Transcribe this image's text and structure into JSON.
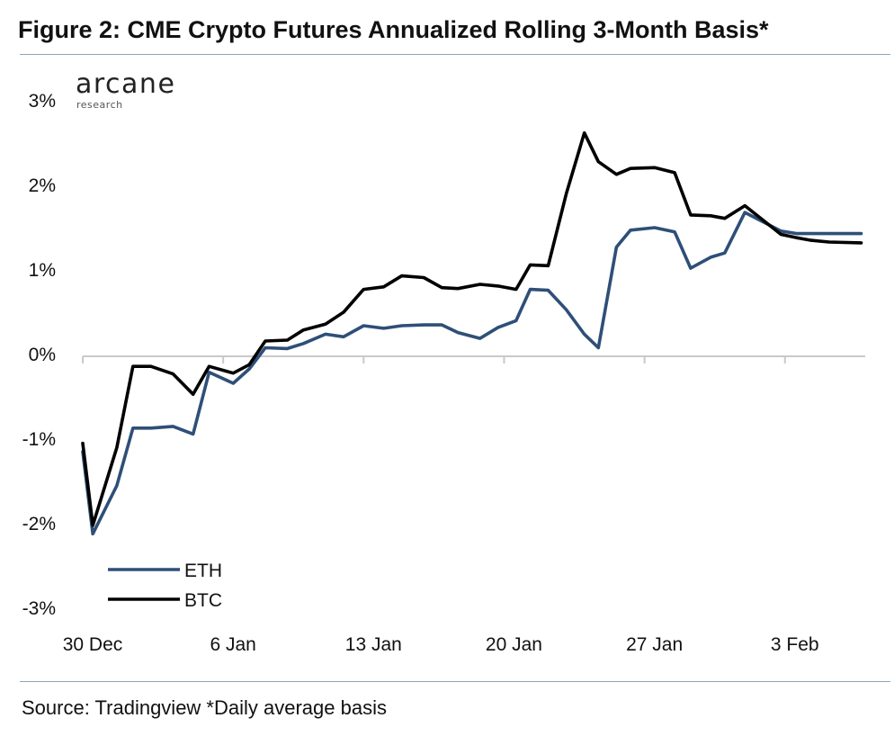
{
  "title": "Figure 2: CME Crypto Futures Annualized Rolling 3-Month Basis*",
  "source": "Source: Tradingview *Daily average basis",
  "logo": {
    "main": "arcane",
    "sub": "research"
  },
  "colors": {
    "ETH": "#2e4f78",
    "BTC": "#000000",
    "rule": "#8fa3b8",
    "axis": "#c9c9c9"
  },
  "chart_data": {
    "type": "line",
    "title": "Figure 2: CME Crypto Futures Annualized Rolling 3-Month Basis*",
    "xlabel": "",
    "ylabel": "",
    "ylim": [
      -3,
      3
    ],
    "y_ticks": [
      "3%",
      "2%",
      "1%",
      "0%",
      "-1%",
      "-2%",
      "-3%"
    ],
    "y_tick_values": [
      3,
      2,
      1,
      0,
      -1,
      -2,
      -3
    ],
    "x_ticks": [
      "30 Dec",
      "6 Jan",
      "13 Jan",
      "20 Jan",
      "27 Jan",
      "3 Feb"
    ],
    "x_tick_days": [
      0,
      7,
      14,
      21,
      28,
      35
    ],
    "x_range_days": [
      0,
      39
    ],
    "legend": "bottom-left",
    "grid": false,
    "series": [
      {
        "name": "ETH",
        "x": [
          0,
          0.5,
          1.7,
          2.5,
          3.4,
          4.5,
          5.5,
          6.3,
          7.5,
          8.3,
          9.1,
          10.2,
          11,
          12.1,
          13,
          14,
          15,
          15.9,
          17,
          17.9,
          18.7,
          19.8,
          20.7,
          21.6,
          22.3,
          23.2,
          24.1,
          25,
          25.7,
          26.6,
          27.3,
          28.5,
          29.5,
          30.3,
          31.3,
          32,
          33,
          34.8,
          35.6,
          36.3,
          37.2,
          38.8
        ],
        "y": [
          -1.15,
          -2.12,
          -1.55,
          -0.87,
          -0.87,
          -0.85,
          -0.94,
          -0.21,
          -0.34,
          -0.17,
          0.08,
          0.07,
          0.13,
          0.24,
          0.21,
          0.34,
          0.31,
          0.34,
          0.35,
          0.35,
          0.26,
          0.19,
          0.32,
          0.4,
          0.77,
          0.76,
          0.53,
          0.24,
          0.08,
          1.27,
          1.47,
          1.5,
          1.45,
          1.02,
          1.15,
          1.2,
          1.68,
          1.46,
          1.43,
          1.43,
          1.43,
          1.43
        ]
      },
      {
        "name": "BTC",
        "x": [
          0,
          0.5,
          1.7,
          2.5,
          3.4,
          4.5,
          5.5,
          6.3,
          7.5,
          8.3,
          9.1,
          10.2,
          11,
          12.1,
          13,
          14,
          15,
          15.9,
          17,
          17.9,
          18.7,
          19.8,
          20.7,
          21.6,
          22.3,
          23.2,
          24.1,
          25,
          25.7,
          26.6,
          27.3,
          28.5,
          29.5,
          30.3,
          31.3,
          32,
          33,
          34.8,
          35.6,
          36.3,
          37.2,
          38.8
        ],
        "y": [
          -1.05,
          -2.02,
          -1.1,
          -0.14,
          -0.14,
          -0.23,
          -0.47,
          -0.14,
          -0.22,
          -0.12,
          0.16,
          0.17,
          0.29,
          0.36,
          0.5,
          0.77,
          0.8,
          0.93,
          0.91,
          0.79,
          0.78,
          0.83,
          0.81,
          0.77,
          1.06,
          1.05,
          1.9,
          2.62,
          2.28,
          2.13,
          2.2,
          2.21,
          2.15,
          1.65,
          1.64,
          1.61,
          1.76,
          1.42,
          1.38,
          1.35,
          1.33,
          1.32
        ]
      }
    ]
  }
}
